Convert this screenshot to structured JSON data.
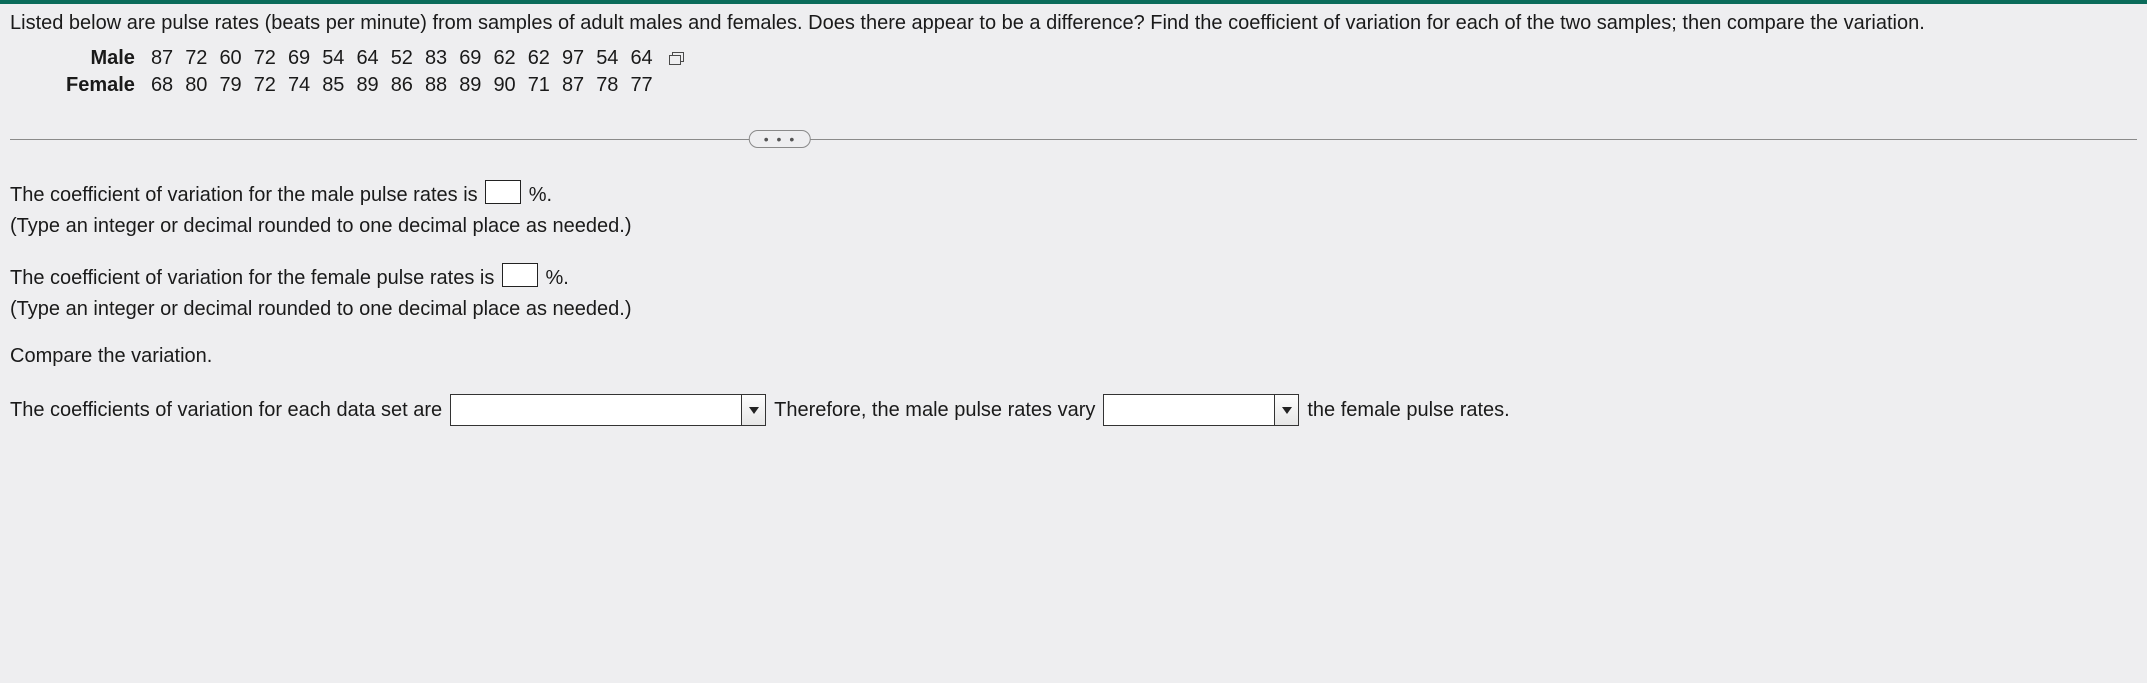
{
  "colors": {
    "background": "#eeeef0",
    "text": "#1a1a1a",
    "topbar": "#0a6b5a",
    "divider": "#8a8a8a",
    "input_border": "#222222",
    "input_bg": "#ffffff"
  },
  "question": {
    "prompt": "Listed below are pulse rates (beats per minute) from samples of adult males and females. Does there appear to be a difference? Find the coefficient of variation for each of the two samples; then compare the variation."
  },
  "data_table": {
    "rows": [
      {
        "label": "Male",
        "values": [
          "87",
          "72",
          "60",
          "72",
          "69",
          "54",
          "64",
          "52",
          "83",
          "69",
          "62",
          "62",
          "97",
          "54",
          "64"
        ]
      },
      {
        "label": "Female",
        "values": [
          "68",
          "80",
          "79",
          "72",
          "74",
          "85",
          "89",
          "86",
          "88",
          "89",
          "90",
          "71",
          "87",
          "78",
          "77"
        ]
      }
    ]
  },
  "expand": {
    "dots": "• • •"
  },
  "answers": {
    "male_pre": "The coefficient of variation for the male pulse rates is ",
    "male_post": "%.",
    "female_pre": "The coefficient of variation for the female pulse rates is ",
    "female_post": "%.",
    "hint": "(Type an integer or decimal rounded to one decimal place as needed.)",
    "compare_heading": "Compare the variation."
  },
  "compare": {
    "pre": "The coefficients of variation for each data set are",
    "mid": "Therefore, the male pulse rates vary",
    "post": "the female pulse rates.",
    "dropdown1_value": "",
    "dropdown2_value": ""
  }
}
